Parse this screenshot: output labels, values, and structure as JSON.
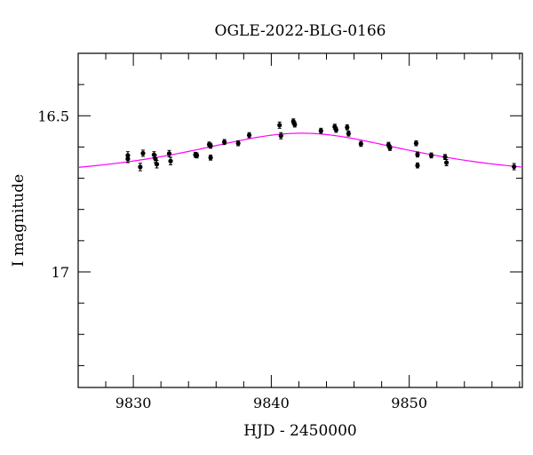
{
  "chart_data": {
    "type": "scatter",
    "title": "OGLE-2022-BLG-0166",
    "xlabel": "HJD - 2450000",
    "ylabel": "I magnitude",
    "xlim": [
      9826,
      9858.2
    ],
    "ylim": [
      17.37,
      16.3
    ],
    "inverted_y": true,
    "x_ticks": [
      9830,
      9840,
      9850
    ],
    "y_ticks": [
      16.5,
      17
    ],
    "x_tick_labels": [
      "9830",
      "9840",
      "9850"
    ],
    "y_tick_labels": [
      "16.5",
      "17"
    ],
    "grid": false,
    "series": [
      {
        "marker": "filled-circle",
        "color": "#000000",
        "points": [
          {
            "x": 9829.6,
            "y": 16.627,
            "err": 0.012
          },
          {
            "x": 9829.6,
            "y": 16.638,
            "err": 0.012
          },
          {
            "x": 9830.5,
            "y": 16.664,
            "err": 0.012
          },
          {
            "x": 9830.7,
            "y": 16.62,
            "err": 0.01
          },
          {
            "x": 9831.5,
            "y": 16.625,
            "err": 0.01
          },
          {
            "x": 9831.6,
            "y": 16.638,
            "err": 0.012
          },
          {
            "x": 9831.7,
            "y": 16.655,
            "err": 0.012
          },
          {
            "x": 9832.6,
            "y": 16.621,
            "err": 0.01
          },
          {
            "x": 9832.7,
            "y": 16.645,
            "err": 0.012
          },
          {
            "x": 9834.5,
            "y": 16.625,
            "err": 0.008
          },
          {
            "x": 9834.6,
            "y": 16.627,
            "err": 0.008
          },
          {
            "x": 9835.5,
            "y": 16.592,
            "err": 0.008
          },
          {
            "x": 9835.6,
            "y": 16.596,
            "err": 0.008
          },
          {
            "x": 9835.6,
            "y": 16.634,
            "err": 0.008
          },
          {
            "x": 9836.6,
            "y": 16.584,
            "err": 0.008
          },
          {
            "x": 9837.6,
            "y": 16.588,
            "err": 0.008
          },
          {
            "x": 9838.4,
            "y": 16.562,
            "err": 0.008
          },
          {
            "x": 9840.6,
            "y": 16.53,
            "err": 0.01
          },
          {
            "x": 9840.7,
            "y": 16.564,
            "err": 0.01
          },
          {
            "x": 9841.6,
            "y": 16.518,
            "err": 0.008
          },
          {
            "x": 9841.7,
            "y": 16.528,
            "err": 0.008
          },
          {
            "x": 9843.6,
            "y": 16.548,
            "err": 0.008
          },
          {
            "x": 9844.6,
            "y": 16.535,
            "err": 0.008
          },
          {
            "x": 9844.7,
            "y": 16.545,
            "err": 0.008
          },
          {
            "x": 9845.5,
            "y": 16.537,
            "err": 0.008
          },
          {
            "x": 9845.6,
            "y": 16.557,
            "err": 0.008
          },
          {
            "x": 9846.5,
            "y": 16.59,
            "err": 0.008
          },
          {
            "x": 9848.5,
            "y": 16.593,
            "err": 0.008
          },
          {
            "x": 9848.6,
            "y": 16.603,
            "err": 0.008
          },
          {
            "x": 9850.5,
            "y": 16.588,
            "err": 0.008
          },
          {
            "x": 9850.6,
            "y": 16.624,
            "err": 0.008
          },
          {
            "x": 9850.6,
            "y": 16.659,
            "err": 0.008
          },
          {
            "x": 9851.6,
            "y": 16.627,
            "err": 0.008
          },
          {
            "x": 9852.6,
            "y": 16.632,
            "err": 0.008
          },
          {
            "x": 9852.7,
            "y": 16.65,
            "err": 0.01
          },
          {
            "x": 9857.6,
            "y": 16.663,
            "err": 0.01
          }
        ]
      },
      {
        "type": "line",
        "color": "#ff00ff",
        "model": {
          "baseline_mag": 16.7,
          "t0": 9842.2,
          "u0": 0.72,
          "tE": 13.0
        }
      }
    ]
  }
}
